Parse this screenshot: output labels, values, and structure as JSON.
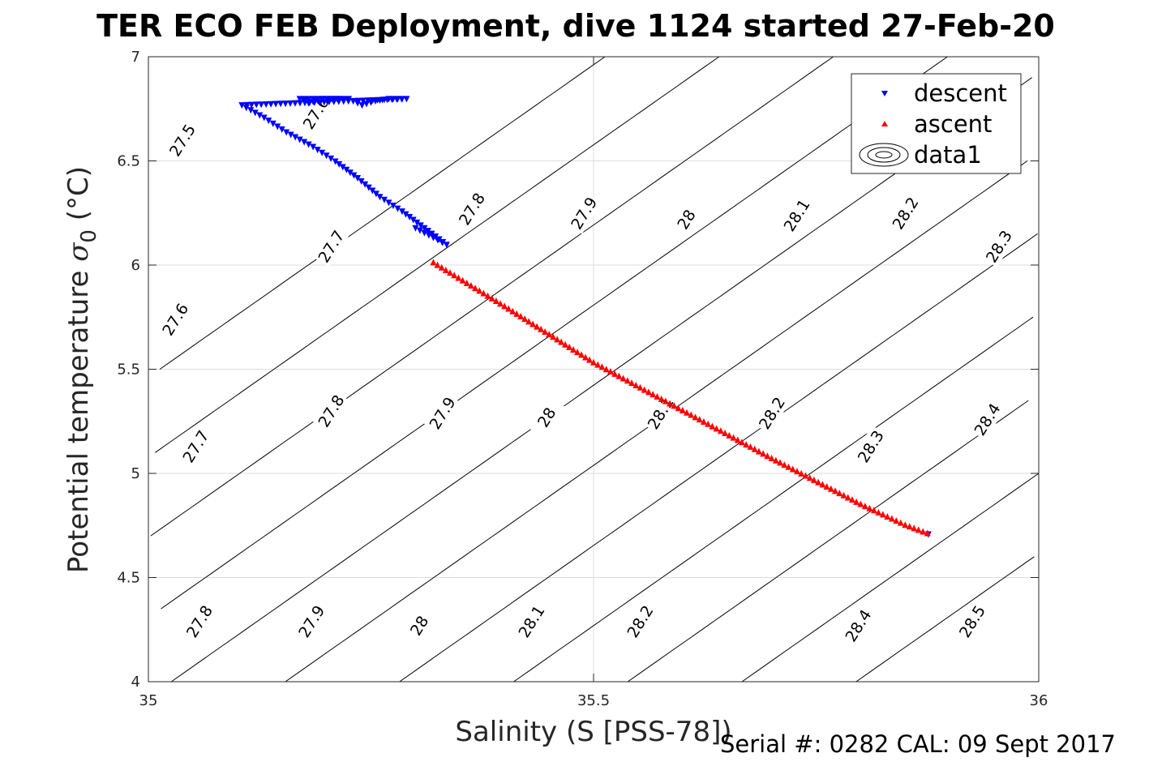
{
  "chart_data": {
    "type": "scatter",
    "title": "TER ECO FEB Deployment, dive 1124 started 27-Feb-20",
    "xlabel": "Salinity (S [PSS-78])",
    "ylabel_main": "Potential temperature ",
    "ylabel_symbol": "σ",
    "ylabel_subscript": "0",
    "ylabel_unit": " (°C)",
    "xlim": [
      35,
      36
    ],
    "ylim": [
      4,
      7
    ],
    "xticks": [
      35,
      35.5,
      36
    ],
    "xtick_labels": [
      "35",
      "35.5",
      "36"
    ],
    "yticks": [
      4,
      4.5,
      5,
      5.5,
      6,
      6.5,
      7
    ],
    "ytick_labels": [
      "4",
      "4.5",
      "5",
      "5.5",
      "6",
      "6.5",
      "7"
    ],
    "grid": true,
    "legend_position": "top-right",
    "legend": [
      "descent",
      "ascent",
      "data1"
    ],
    "series": [
      {
        "name": "descent",
        "color": "#0000ff",
        "marker": "triangle-down",
        "x": [
          35.212,
          35.19,
          35.175,
          35.17,
          35.18,
          35.195,
          35.21,
          35.225,
          35.24,
          35.255,
          35.27,
          35.29,
          35.105,
          35.13,
          35.155,
          35.185,
          35.21,
          35.235,
          35.26,
          35.285,
          35.31,
          35.335,
          35.3
        ],
        "y": [
          6.8,
          6.8,
          6.8,
          6.8,
          6.78,
          6.8,
          6.8,
          6.8,
          6.77,
          6.79,
          6.8,
          6.8,
          6.77,
          6.71,
          6.64,
          6.57,
          6.5,
          6.42,
          6.33,
          6.26,
          6.18,
          6.1,
          6.18
        ]
      },
      {
        "name": "ascent",
        "color": "#ff0000",
        "marker": "triangle-up",
        "x": [
          35.32,
          35.4,
          35.5,
          35.6,
          35.7,
          35.8,
          35.85,
          35.875
        ],
        "y": [
          6.01,
          5.8,
          5.53,
          5.3,
          5.07,
          4.85,
          4.75,
          4.71
        ]
      }
    ],
    "contour_levels": [
      27.5,
      27.6,
      27.7,
      27.8,
      27.9,
      28,
      28.1,
      28.2,
      28.3,
      28.4,
      28.5
    ],
    "contour_labels": [
      {
        "text": "27.5",
        "s": 35.038,
        "t": 6.6
      },
      {
        "text": "27.6",
        "s": 35.188,
        "t": 6.73
      },
      {
        "text": "27.6",
        "s": 35.03,
        "t": 5.74
      },
      {
        "text": "27.7",
        "s": 35.205,
        "t": 6.09
      },
      {
        "text": "27.7",
        "s": 35.053,
        "t": 5.13
      },
      {
        "text": "27.8",
        "s": 35.363,
        "t": 6.27
      },
      {
        "text": "27.8",
        "s": 35.205,
        "t": 5.3
      },
      {
        "text": "27.8",
        "s": 35.057,
        "t": 4.29
      },
      {
        "text": "27.9",
        "s": 35.489,
        "t": 6.25
      },
      {
        "text": "27.9",
        "s": 35.33,
        "t": 5.29
      },
      {
        "text": "27.9",
        "s": 35.183,
        "t": 4.29
      },
      {
        "text": "28",
        "s": 35.604,
        "t": 6.22
      },
      {
        "text": "28",
        "s": 35.447,
        "t": 5.27
      },
      {
        "text": "28",
        "s": 35.304,
        "t": 4.27
      },
      {
        "text": "28.1",
        "s": 35.728,
        "t": 6.24
      },
      {
        "text": "28.1",
        "s": 35.575,
        "t": 5.29
      },
      {
        "text": "28.1",
        "s": 35.43,
        "t": 4.29
      },
      {
        "text": "28.2",
        "s": 35.85,
        "t": 6.25
      },
      {
        "text": "28.2",
        "s": 35.7,
        "t": 5.29
      },
      {
        "text": "28.2",
        "s": 35.552,
        "t": 4.29
      },
      {
        "text": "28.3",
        "s": 35.955,
        "t": 6.09
      },
      {
        "text": "28.3",
        "s": 35.811,
        "t": 5.13
      },
      {
        "text": "28.4",
        "s": 35.942,
        "t": 5.26
      },
      {
        "text": "28.4",
        "s": 35.797,
        "t": 4.27
      },
      {
        "text": "28.5",
        "s": 35.925,
        "t": 4.29
      }
    ]
  },
  "footer": {
    "serial_text": "Serial #: 0282  CAL: 09 Sept 2017"
  }
}
